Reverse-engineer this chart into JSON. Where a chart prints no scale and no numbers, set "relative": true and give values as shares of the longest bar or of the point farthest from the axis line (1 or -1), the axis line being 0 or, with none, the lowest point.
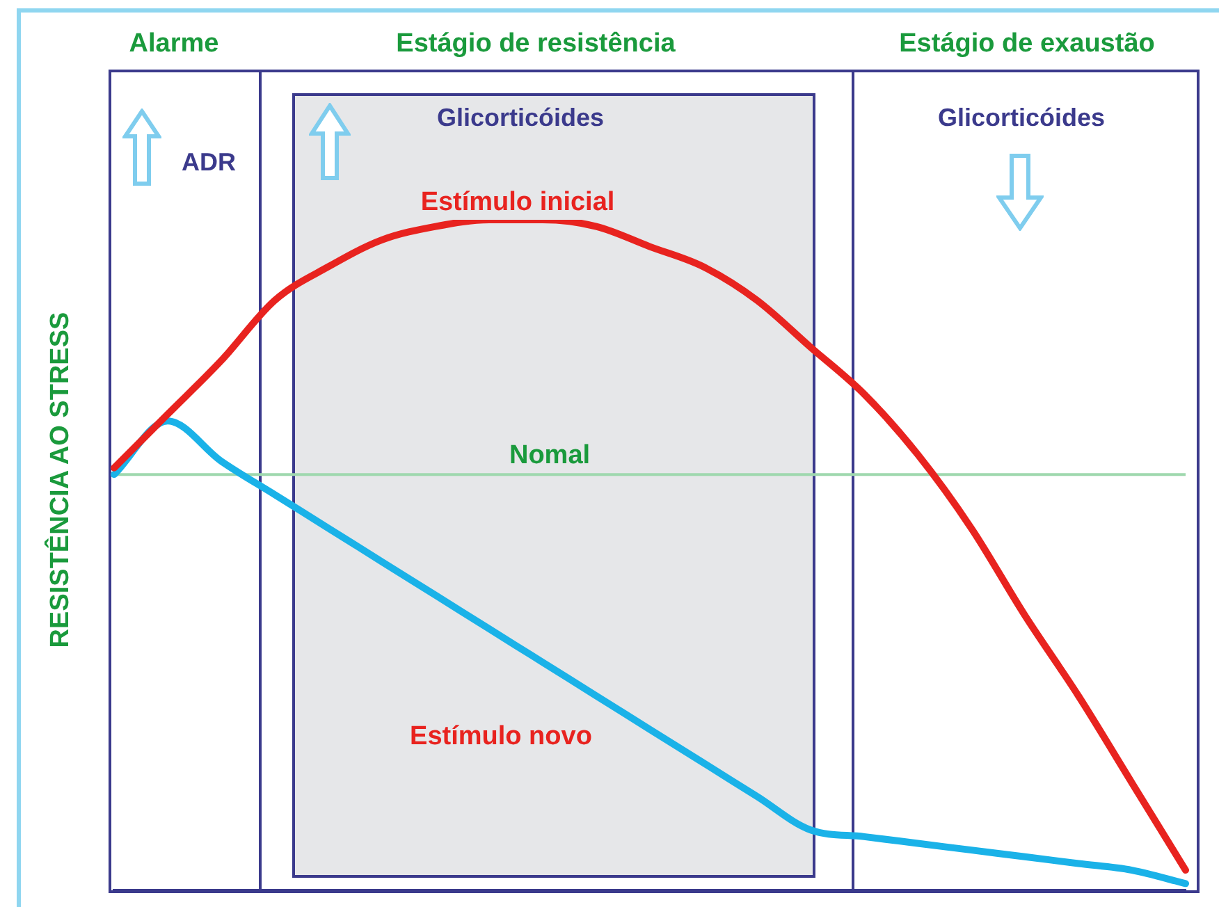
{
  "chart_data": {
    "type": "line",
    "relative": true,
    "ylabel": "RESISTÊNCIA AO STRESS",
    "marker": "none",
    "legend": false,
    "categories": [
      null,
      null,
      null,
      null,
      null,
      null,
      null,
      null,
      null,
      null,
      null,
      null,
      null,
      null,
      null,
      null,
      null,
      null,
      null,
      null,
      null
    ],
    "series": [
      {
        "name": "Estímulo inicial",
        "color": "#e8231f",
        "values": [
          0.63,
          0.71,
          0.79,
          0.88,
          0.93,
          0.97,
          0.99,
          1.0,
          1.0,
          0.99,
          0.96,
          0.93,
          0.88,
          0.81,
          0.74,
          0.65,
          0.54,
          0.41,
          0.29,
          0.16,
          0.03
        ]
      },
      {
        "name": "Estímulo novo",
        "color": "#1ab2e8",
        "values": [
          0.62,
          0.7,
          0.64,
          0.59,
          0.54,
          0.49,
          0.44,
          0.39,
          0.34,
          0.29,
          0.24,
          0.19,
          0.14,
          0.09,
          0.08,
          0.07,
          0.06,
          0.05,
          0.04,
          0.03,
          0.01
        ]
      }
    ],
    "ref_lines": [
      {
        "axis": "y",
        "value": 0.62,
        "label": "Nomal",
        "color": "#9fd8ae"
      }
    ],
    "annotations": [
      "Alarme",
      "Estágio de resistência",
      "Estágio de exaustão",
      "ADR",
      "Glicorticóides",
      "Glicorticóides"
    ]
  }
}
